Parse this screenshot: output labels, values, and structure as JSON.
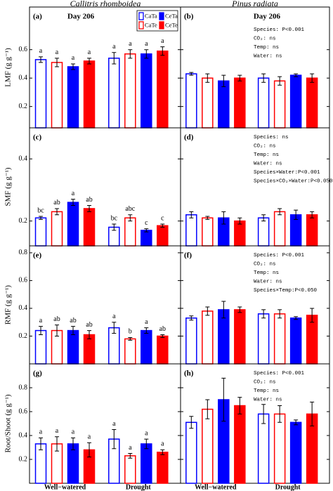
{
  "column_titles": [
    "Callitris rhomboidea",
    "Pinus radiata"
  ],
  "categories": [
    "Well−watered",
    "Drought"
  ],
  "series": [
    {
      "name": "CaTa",
      "color": "#0000ff",
      "filled": false
    },
    {
      "name": "CaTe",
      "color": "#ff0000",
      "filled": false
    },
    {
      "name": "CeTa",
      "color": "#0000ff",
      "filled": true
    },
    {
      "name": "CeTe",
      "color": "#ff0000",
      "filled": true
    }
  ],
  "chart_data": [
    {
      "type": "bar",
      "label": "(a)",
      "subtitle": "Day 206",
      "ylabel": "LMF (g g⁻¹)",
      "legend": "upper right",
      "ylim": [
        0.05,
        0.9
      ],
      "yticks": [
        0.2,
        0.4,
        0.6
      ],
      "series": [
        {
          "values": [
            0.53,
            0.54
          ],
          "errors": [
            0.02,
            0.04
          ],
          "letters": [
            "a",
            "a"
          ]
        },
        {
          "values": [
            0.51,
            0.57
          ],
          "errors": [
            0.03,
            0.03
          ],
          "letters": [
            "a",
            "a"
          ]
        },
        {
          "values": [
            0.48,
            0.57
          ],
          "errors": [
            0.02,
            0.03
          ],
          "letters": [
            "a",
            "a"
          ]
        },
        {
          "values": [
            0.52,
            0.59
          ],
          "errors": [
            0.02,
            0.03
          ],
          "letters": [
            "a",
            "a"
          ]
        }
      ]
    },
    {
      "type": "bar",
      "label": "(b)",
      "subtitle": "Day 206",
      "ylim": [
        0.05,
        0.9
      ],
      "yticks": [
        0.2,
        0.4,
        0.6
      ],
      "annotations": [
        "Species: P<0.001",
        "CO₂: ns",
        "Temp: ns",
        "Water: ns"
      ],
      "series": [
        {
          "values": [
            0.43,
            0.4
          ],
          "errors": [
            0.01,
            0.03
          ]
        },
        {
          "values": [
            0.4,
            0.38
          ],
          "errors": [
            0.03,
            0.03
          ]
        },
        {
          "values": [
            0.38,
            0.42
          ],
          "errors": [
            0.04,
            0.01
          ]
        },
        {
          "values": [
            0.4,
            0.4
          ],
          "errors": [
            0.02,
            0.03
          ]
        }
      ]
    },
    {
      "type": "bar",
      "label": "(c)",
      "ylabel": "SMF (g g⁻¹)",
      "ylim": [
        0.12,
        0.5
      ],
      "yticks": [
        0.2,
        0.4
      ],
      "series": [
        {
          "values": [
            0.21,
            0.18
          ],
          "errors": [
            0.005,
            0.01
          ],
          "letters": [
            "bc",
            "bc"
          ]
        },
        {
          "values": [
            0.23,
            0.21
          ],
          "errors": [
            0.01,
            0.01
          ],
          "letters": [
            "ab",
            "abc"
          ]
        },
        {
          "values": [
            0.26,
            0.17
          ],
          "errors": [
            0.01,
            0.005
          ],
          "letters": [
            "a",
            "c"
          ]
        },
        {
          "values": [
            0.24,
            0.185
          ],
          "errors": [
            0.01,
            0.005
          ],
          "letters": [
            "ab",
            "c"
          ]
        }
      ]
    },
    {
      "type": "bar",
      "label": "(d)",
      "ylim": [
        0.12,
        0.5
      ],
      "yticks": [
        0.2,
        0.4
      ],
      "annotations": [
        "Species: ns",
        "CO₂: ns",
        "Temp: ns",
        "Water: ns",
        "Species×Water:P<0.001",
        "Species×CO₂×Water:P<0.050"
      ],
      "series": [
        {
          "values": [
            0.22,
            0.21
          ],
          "errors": [
            0.01,
            0.01
          ]
        },
        {
          "values": [
            0.21,
            0.23
          ],
          "errors": [
            0.005,
            0.01
          ]
        },
        {
          "values": [
            0.21,
            0.22
          ],
          "errors": [
            0.02,
            0.015
          ]
        },
        {
          "values": [
            0.2,
            0.22
          ],
          "errors": [
            0.01,
            0.01
          ]
        }
      ]
    },
    {
      "type": "bar",
      "label": "(e)",
      "ylabel": "RMF (g g⁻¹)",
      "ylim": [
        0,
        0.85
      ],
      "yticks": [
        0.2,
        0.4,
        0.6,
        0.8
      ],
      "series": [
        {
          "values": [
            0.24,
            0.26
          ],
          "errors": [
            0.03,
            0.04
          ],
          "letters": [
            "a",
            "a"
          ]
        },
        {
          "values": [
            0.24,
            0.18
          ],
          "errors": [
            0.04,
            0.01
          ],
          "letters": [
            "ab",
            "b"
          ]
        },
        {
          "values": [
            0.24,
            0.24
          ],
          "errors": [
            0.03,
            0.02
          ],
          "letters": [
            "ab",
            "a"
          ]
        },
        {
          "values": [
            0.21,
            0.2
          ],
          "errors": [
            0.03,
            0.01
          ],
          "letters": [
            "ab",
            "ab"
          ]
        }
      ]
    },
    {
      "type": "bar",
      "label": "(f)",
      "ylim": [
        0,
        0.85
      ],
      "yticks": [
        0.2,
        0.4,
        0.6,
        0.8
      ],
      "annotations": [
        "Species: P<0.001",
        "CO₂: ns",
        "Temp: ns",
        "Water: ns",
        "Species×Temp:P<0.050"
      ],
      "series": [
        {
          "values": [
            0.33,
            0.36
          ],
          "errors": [
            0.015,
            0.03
          ]
        },
        {
          "values": [
            0.38,
            0.36
          ],
          "errors": [
            0.03,
            0.03
          ]
        },
        {
          "values": [
            0.39,
            0.33
          ],
          "errors": [
            0.06,
            0.01
          ]
        },
        {
          "values": [
            0.39,
            0.35
          ],
          "errors": [
            0.02,
            0.05
          ]
        }
      ]
    },
    {
      "type": "bar",
      "label": "(g)",
      "ylabel": "Root/Shoot (g g⁻¹)",
      "ylim": [
        0,
        1.0
      ],
      "yticks": [
        0.2,
        0.4,
        0.6,
        0.8
      ],
      "series": [
        {
          "values": [
            0.33,
            0.37
          ],
          "errors": [
            0.05,
            0.08
          ],
          "letters": [
            "a",
            "a"
          ]
        },
        {
          "values": [
            0.33,
            0.23
          ],
          "errors": [
            0.06,
            0.02
          ],
          "letters": [
            "a",
            "a"
          ]
        },
        {
          "values": [
            0.33,
            0.33
          ],
          "errors": [
            0.05,
            0.04
          ],
          "letters": [
            "a",
            "a"
          ]
        },
        {
          "values": [
            0.28,
            0.26
          ],
          "errors": [
            0.06,
            0.02
          ],
          "letters": [
            "a",
            "a"
          ]
        }
      ]
    },
    {
      "type": "bar",
      "label": "(h)",
      "ylim": [
        0,
        1.0
      ],
      "yticks": [
        0.2,
        0.4,
        0.6,
        0.8
      ],
      "annotations": [
        "Species: P<0.001",
        "CO₂: ns",
        "Temp: ns",
        "Water: ns"
      ],
      "series": [
        {
          "values": [
            0.51,
            0.58
          ],
          "errors": [
            0.05,
            0.08
          ]
        },
        {
          "values": [
            0.62,
            0.58
          ],
          "errors": [
            0.08,
            0.07
          ]
        },
        {
          "values": [
            0.7,
            0.51
          ],
          "errors": [
            0.18,
            0.02
          ]
        },
        {
          "values": [
            0.65,
            0.58
          ],
          "errors": [
            0.07,
            0.1
          ]
        }
      ]
    }
  ]
}
